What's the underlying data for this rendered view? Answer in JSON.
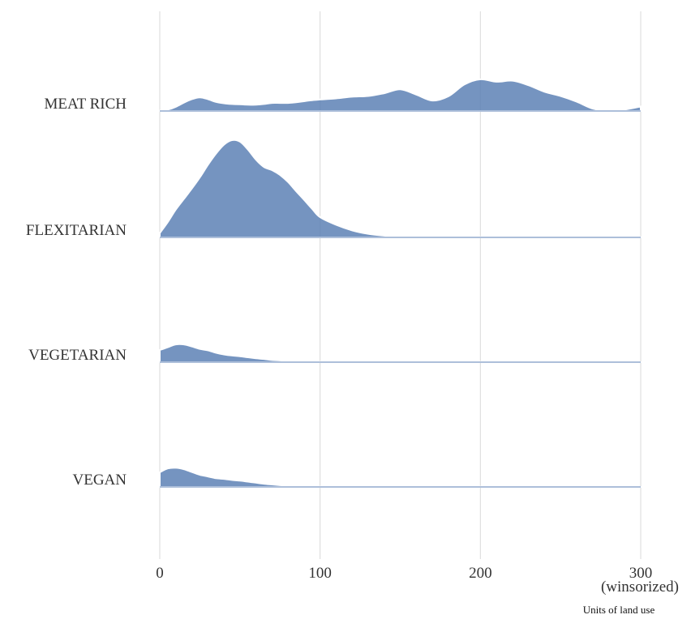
{
  "chart_data": {
    "type": "ridgeline",
    "title": "",
    "xlabel": "Units of land use",
    "xlabel_note": "(winsorized)",
    "xlim": [
      0,
      300
    ],
    "x_ticks": [
      0,
      100,
      200,
      300
    ],
    "x_tick_labels": [
      "0",
      "100",
      "200",
      "300"
    ],
    "grid": "vertical",
    "fill_color": "#5b7fb4",
    "x": [
      0,
      5,
      10,
      15,
      20,
      25,
      30,
      35,
      40,
      45,
      50,
      55,
      60,
      65,
      70,
      75,
      80,
      85,
      90,
      95,
      100,
      110,
      120,
      130,
      140,
      150,
      160,
      170,
      180,
      190,
      200,
      210,
      220,
      230,
      240,
      250,
      260,
      270,
      280,
      290,
      300
    ],
    "series": [
      {
        "name": "MEAT RICH",
        "values": [
          0.01,
          0.04,
          0.12,
          0.24,
          0.34,
          0.39,
          0.34,
          0.26,
          0.22,
          0.2,
          0.19,
          0.18,
          0.18,
          0.2,
          0.23,
          0.23,
          0.23,
          0.25,
          0.28,
          0.31,
          0.33,
          0.36,
          0.41,
          0.43,
          0.51,
          0.62,
          0.47,
          0.3,
          0.42,
          0.76,
          0.91,
          0.84,
          0.87,
          0.74,
          0.55,
          0.43,
          0.27,
          0.07,
          0.01,
          0.04,
          0.13
        ]
      },
      {
        "name": "FLEXITARIAN",
        "values": [
          0.12,
          0.44,
          0.8,
          1.1,
          1.4,
          1.72,
          2.08,
          2.4,
          2.66,
          2.79,
          2.75,
          2.52,
          2.23,
          2.02,
          1.93,
          1.79,
          1.59,
          1.33,
          1.08,
          0.82,
          0.58,
          0.36,
          0.2,
          0.1,
          0.05,
          0.03,
          0.02,
          0.01,
          0.01,
          0.01,
          0.01,
          0.01,
          0.01,
          0.01,
          0.01,
          0.01,
          0.01,
          0.01,
          0.01,
          0.01,
          0.01
        ]
      },
      {
        "name": "VEGETARIAN",
        "values": [
          0.35,
          0.43,
          0.51,
          0.51,
          0.45,
          0.38,
          0.34,
          0.27,
          0.22,
          0.19,
          0.17,
          0.14,
          0.11,
          0.09,
          0.06,
          0.05,
          0.03,
          0.02,
          0.02,
          0.01,
          0.01,
          0.0,
          0.0,
          0.0,
          0.0,
          0.01,
          0.0,
          0.0,
          0.0,
          0.0,
          0.01,
          0.0,
          0.0,
          0.0,
          0.0,
          0.0,
          0.0,
          0.0,
          0.0,
          0.0,
          0.0
        ]
      },
      {
        "name": "VEGAN",
        "values": [
          0.42,
          0.53,
          0.55,
          0.51,
          0.43,
          0.35,
          0.3,
          0.25,
          0.23,
          0.2,
          0.18,
          0.15,
          0.12,
          0.09,
          0.07,
          0.05,
          0.04,
          0.03,
          0.02,
          0.02,
          0.01,
          0.01,
          0.0,
          0.0,
          0.0,
          0.01,
          0.0,
          0.0,
          0.0,
          0.0,
          0.01,
          0.0,
          0.0,
          0.0,
          0.0,
          0.0,
          0.0,
          0.0,
          0.0,
          0.0,
          0.0
        ]
      }
    ]
  }
}
